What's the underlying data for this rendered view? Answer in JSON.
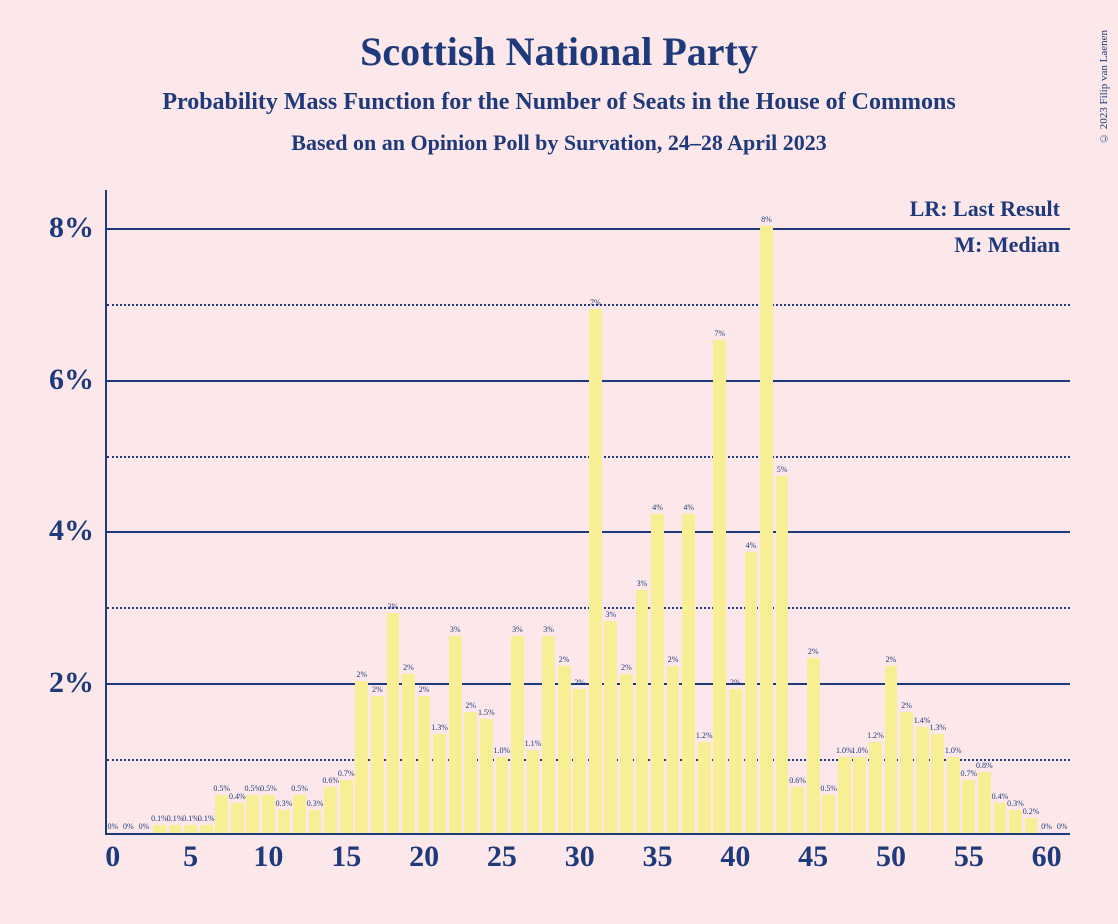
{
  "copyright": "© 2023 Filip van Laenen",
  "title": "Scottish National Party",
  "subtitle": "Probability Mass Function for the Number of Seats in the House of Commons",
  "subtitle2": "Based on an Opinion Poll by Survation, 24–28 April 2023",
  "legend": {
    "lr": "LR: Last Result",
    "m": "M: Median"
  },
  "chart": {
    "type": "bar",
    "background_color": "#fce8ea",
    "bar_color": "#f8ee94",
    "axis_color": "#1e3a7b",
    "text_color": "#1e3a7b",
    "y_axis": {
      "min": 0,
      "max": 8.5,
      "major_ticks": [
        2,
        4,
        6,
        8
      ],
      "minor_ticks": [
        1,
        3,
        5,
        7
      ],
      "tick_labels": [
        "2%",
        "4%",
        "6%",
        "8%"
      ]
    },
    "x_axis": {
      "min": 0,
      "max": 60,
      "ticks": [
        0,
        5,
        10,
        15,
        20,
        25,
        30,
        35,
        40,
        45,
        50,
        55,
        60
      ],
      "tick_labels": [
        "0",
        "5",
        "10",
        "15",
        "20",
        "25",
        "30",
        "35",
        "40",
        "45",
        "50",
        "55",
        "60"
      ]
    },
    "bars": [
      {
        "x": 0,
        "value": 0,
        "label": "0%"
      },
      {
        "x": 1,
        "value": 0,
        "label": "0%"
      },
      {
        "x": 2,
        "value": 0,
        "label": "0%"
      },
      {
        "x": 3,
        "value": 0.1,
        "label": "0.1%"
      },
      {
        "x": 4,
        "value": 0.1,
        "label": "0.1%"
      },
      {
        "x": 5,
        "value": 0.1,
        "label": "0.1%"
      },
      {
        "x": 6,
        "value": 0.1,
        "label": "0.1%"
      },
      {
        "x": 7,
        "value": 0.5,
        "label": "0.5%"
      },
      {
        "x": 8,
        "value": 0.4,
        "label": "0.4%"
      },
      {
        "x": 9,
        "value": 0.5,
        "label": "0.5%"
      },
      {
        "x": 10,
        "value": 0.5,
        "label": "0.5%"
      },
      {
        "x": 11,
        "value": 0.3,
        "label": "0.3%"
      },
      {
        "x": 12,
        "value": 0.5,
        "label": "0.5%"
      },
      {
        "x": 13,
        "value": 0.3,
        "label": "0.3%"
      },
      {
        "x": 14,
        "value": 0.6,
        "label": "0.6%"
      },
      {
        "x": 15,
        "value": 0.7,
        "label": "0.7%"
      },
      {
        "x": 16,
        "value": 2.0,
        "label": "2%"
      },
      {
        "x": 17,
        "value": 1.8,
        "label": "2%"
      },
      {
        "x": 18,
        "value": 2.9,
        "label": "3%"
      },
      {
        "x": 19,
        "value": 2.1,
        "label": "2%"
      },
      {
        "x": 20,
        "value": 1.8,
        "label": "2%"
      },
      {
        "x": 21,
        "value": 1.3,
        "label": "1.3%"
      },
      {
        "x": 22,
        "value": 2.6,
        "label": "3%"
      },
      {
        "x": 23,
        "value": 1.6,
        "label": "2%"
      },
      {
        "x": 24,
        "value": 1.5,
        "label": "1.5%"
      },
      {
        "x": 25,
        "value": 1.0,
        "label": "1.0%"
      },
      {
        "x": 26,
        "value": 2.6,
        "label": "3%"
      },
      {
        "x": 27,
        "value": 1.1,
        "label": "1.1%"
      },
      {
        "x": 28,
        "value": 2.6,
        "label": "3%"
      },
      {
        "x": 29,
        "value": 2.2,
        "label": "2%"
      },
      {
        "x": 30,
        "value": 1.9,
        "label": "2%"
      },
      {
        "x": 31,
        "value": 6.9,
        "label": "7%"
      },
      {
        "x": 32,
        "value": 2.8,
        "label": "3%"
      },
      {
        "x": 33,
        "value": 2.1,
        "label": "2%"
      },
      {
        "x": 34,
        "value": 3.2,
        "label": "3%"
      },
      {
        "x": 35,
        "value": 4.2,
        "label": "4%"
      },
      {
        "x": 36,
        "value": 2.2,
        "label": "2%"
      },
      {
        "x": 37,
        "value": 4.2,
        "label": "4%"
      },
      {
        "x": 38,
        "value": 1.2,
        "label": "1.2%"
      },
      {
        "x": 39,
        "value": 6.5,
        "label": "7%"
      },
      {
        "x": 40,
        "value": 1.9,
        "label": "2%"
      },
      {
        "x": 41,
        "value": 3.7,
        "label": "4%"
      },
      {
        "x": 42,
        "value": 8.0,
        "label": "8%"
      },
      {
        "x": 43,
        "value": 4.7,
        "label": "5%"
      },
      {
        "x": 44,
        "value": 0.6,
        "label": "0.6%"
      },
      {
        "x": 45,
        "value": 2.3,
        "label": "2%"
      },
      {
        "x": 46,
        "value": 0.5,
        "label": "0.5%"
      },
      {
        "x": 47,
        "value": 1.0,
        "label": "1.0%"
      },
      {
        "x": 48,
        "value": 1.0,
        "label": "1.0%"
      },
      {
        "x": 49,
        "value": 1.2,
        "label": "1.2%"
      },
      {
        "x": 50,
        "value": 2.2,
        "label": "2%"
      },
      {
        "x": 51,
        "value": 1.6,
        "label": "2%"
      },
      {
        "x": 52,
        "value": 1.4,
        "label": "1.4%"
      },
      {
        "x": 53,
        "value": 1.3,
        "label": "1.3%"
      },
      {
        "x": 54,
        "value": 1.0,
        "label": "1.0%"
      },
      {
        "x": 55,
        "value": 0.7,
        "label": "0.7%"
      },
      {
        "x": 56,
        "value": 0.8,
        "label": "0.8%"
      },
      {
        "x": 57,
        "value": 0.4,
        "label": "0.4%"
      },
      {
        "x": 58,
        "value": 0.3,
        "label": "0.3%"
      },
      {
        "x": 59,
        "value": 0.2,
        "label": "0.2%"
      },
      {
        "x": 60,
        "value": 0,
        "label": "0%"
      },
      {
        "x": 61,
        "value": 0,
        "label": "0%"
      }
    ]
  }
}
